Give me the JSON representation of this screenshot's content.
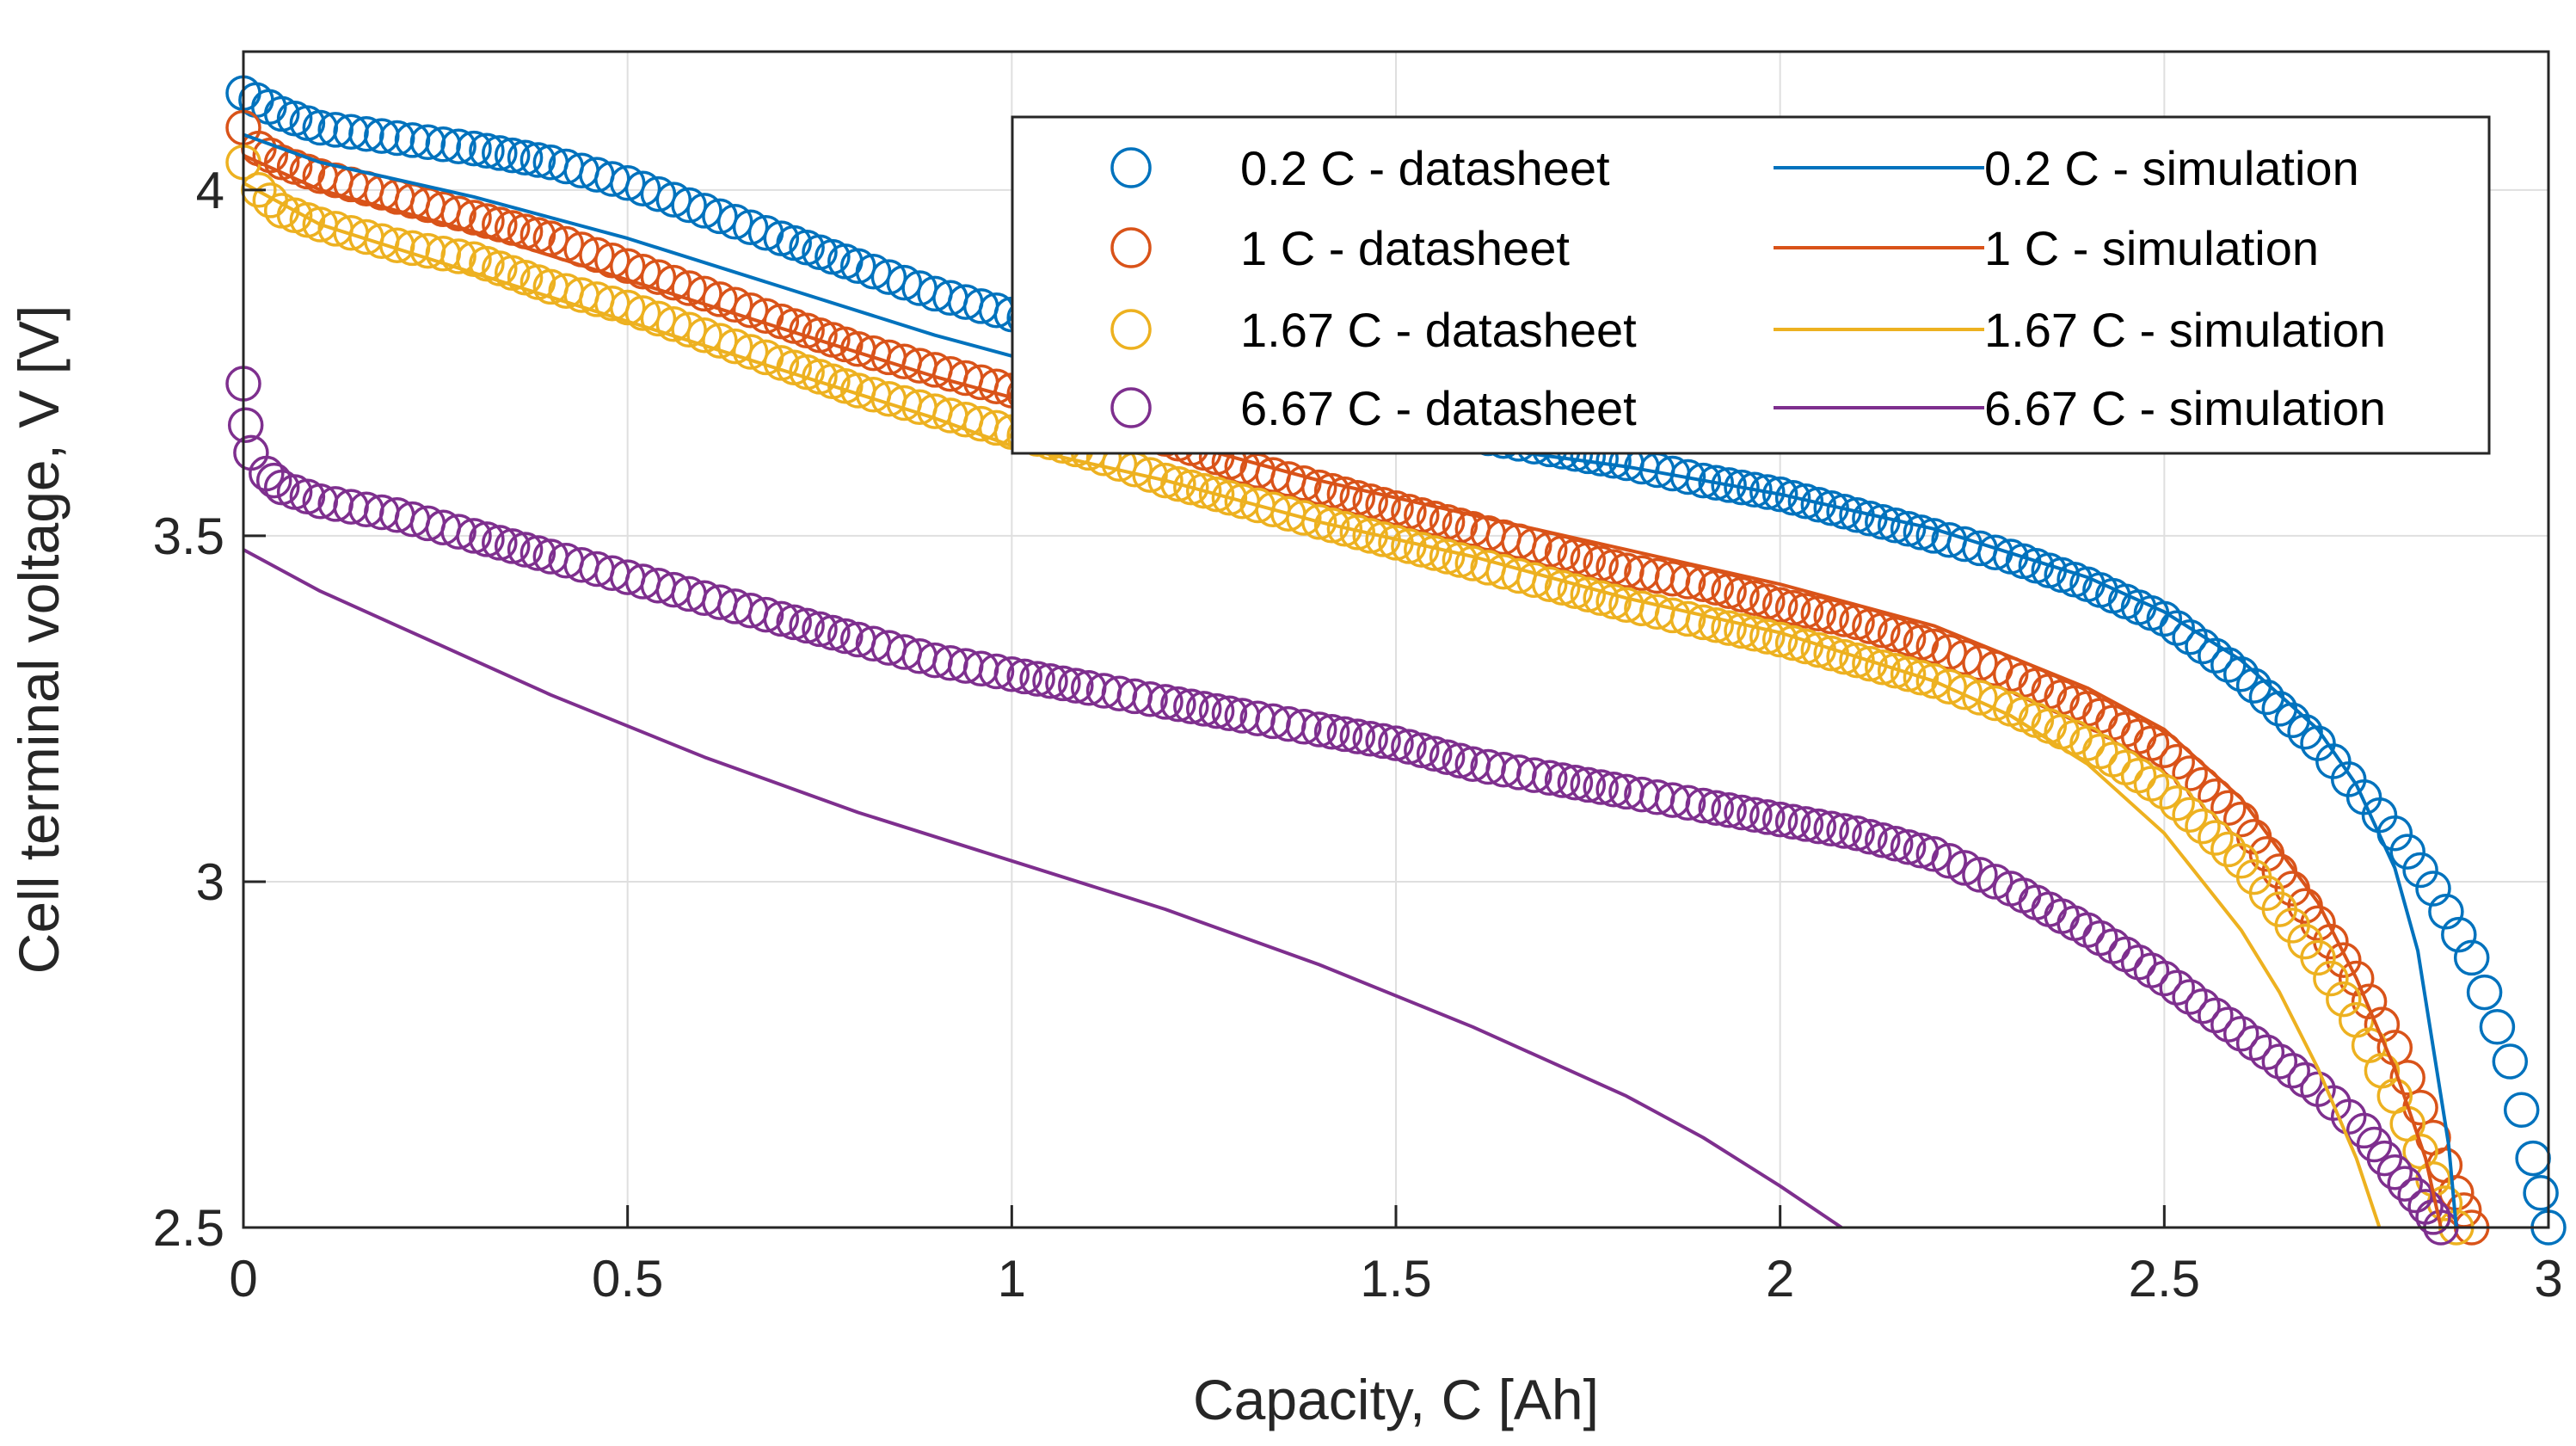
{
  "chart_data": {
    "type": "line",
    "title": "",
    "xlabel": "Capacity, C [Ah]",
    "ylabel": "Cell terminal voltage, V [V]",
    "xlim": [
      0,
      3
    ],
    "ylim": [
      2.5,
      4.2
    ],
    "xticks": [
      0,
      0.5,
      1,
      1.5,
      2,
      2.5,
      3
    ],
    "yticks": [
      2.5,
      3,
      3.5,
      4
    ],
    "xtick_labels": [
      "0",
      "0.5",
      "1",
      "1.5",
      "2",
      "2.5",
      "3"
    ],
    "ytick_labels": [
      "2.5",
      "3",
      "3.5",
      "4"
    ],
    "grid": true,
    "legend_location": "top-right",
    "series": [
      {
        "name": "0.2 C - datasheet",
        "kind": "markers",
        "marker": "circle",
        "color": "#0072BD",
        "points": [
          [
            0,
            4.14
          ],
          [
            0.05,
            4.11
          ],
          [
            0.1,
            4.09
          ],
          [
            0.2,
            4.075
          ],
          [
            0.3,
            4.06
          ],
          [
            0.4,
            4.04
          ],
          [
            0.5,
            4.01
          ],
          [
            0.6,
            3.97
          ],
          [
            0.7,
            3.93
          ],
          [
            0.8,
            3.89
          ],
          [
            0.9,
            3.85
          ],
          [
            1.0,
            3.82
          ],
          [
            1.1,
            3.79
          ],
          [
            1.2,
            3.76
          ],
          [
            1.3,
            3.73
          ],
          [
            1.4,
            3.7
          ],
          [
            1.5,
            3.67
          ],
          [
            1.6,
            3.645
          ],
          [
            1.7,
            3.625
          ],
          [
            1.8,
            3.605
          ],
          [
            1.9,
            3.58
          ],
          [
            2.0,
            3.56
          ],
          [
            2.1,
            3.53
          ],
          [
            2.2,
            3.5
          ],
          [
            2.3,
            3.47
          ],
          [
            2.4,
            3.43
          ],
          [
            2.5,
            3.38
          ],
          [
            2.6,
            3.3
          ],
          [
            2.7,
            3.2
          ],
          [
            2.8,
            3.07
          ],
          [
            2.85,
            2.99
          ],
          [
            2.9,
            2.89
          ],
          [
            2.95,
            2.74
          ],
          [
            2.98,
            2.6
          ],
          [
            3.0,
            2.5
          ]
        ]
      },
      {
        "name": "1 C - datasheet",
        "kind": "markers",
        "marker": "circle",
        "color": "#D95319",
        "points": [
          [
            0,
            4.09
          ],
          [
            0.02,
            4.06
          ],
          [
            0.05,
            4.04
          ],
          [
            0.1,
            4.02
          ],
          [
            0.2,
            3.99
          ],
          [
            0.3,
            3.96
          ],
          [
            0.4,
            3.93
          ],
          [
            0.5,
            3.89
          ],
          [
            0.6,
            3.85
          ],
          [
            0.7,
            3.81
          ],
          [
            0.8,
            3.77
          ],
          [
            0.9,
            3.74
          ],
          [
            1.0,
            3.71
          ],
          [
            1.1,
            3.68
          ],
          [
            1.2,
            3.64
          ],
          [
            1.3,
            3.6
          ],
          [
            1.4,
            3.57
          ],
          [
            1.5,
            3.54
          ],
          [
            1.6,
            3.51
          ],
          [
            1.7,
            3.48
          ],
          [
            1.8,
            3.45
          ],
          [
            1.9,
            3.43
          ],
          [
            2.0,
            3.4
          ],
          [
            2.1,
            3.375
          ],
          [
            2.2,
            3.34
          ],
          [
            2.3,
            3.3
          ],
          [
            2.4,
            3.25
          ],
          [
            2.5,
            3.19
          ],
          [
            2.6,
            3.09
          ],
          [
            2.7,
            2.94
          ],
          [
            2.75,
            2.86
          ],
          [
            2.8,
            2.76
          ],
          [
            2.85,
            2.63
          ],
          [
            2.88,
            2.55
          ],
          [
            2.9,
            2.5
          ]
        ]
      },
      {
        "name": "1.67 C - datasheet",
        "kind": "markers",
        "marker": "circle",
        "color": "#EDB120",
        "points": [
          [
            0,
            4.04
          ],
          [
            0.02,
            4.0
          ],
          [
            0.05,
            3.97
          ],
          [
            0.1,
            3.95
          ],
          [
            0.2,
            3.92
          ],
          [
            0.3,
            3.9
          ],
          [
            0.4,
            3.86
          ],
          [
            0.5,
            3.83
          ],
          [
            0.6,
            3.79
          ],
          [
            0.7,
            3.75
          ],
          [
            0.8,
            3.71
          ],
          [
            0.9,
            3.68
          ],
          [
            1.0,
            3.65
          ],
          [
            1.1,
            3.62
          ],
          [
            1.2,
            3.58
          ],
          [
            1.3,
            3.55
          ],
          [
            1.4,
            3.52
          ],
          [
            1.5,
            3.49
          ],
          [
            1.6,
            3.46
          ],
          [
            1.7,
            3.43
          ],
          [
            1.8,
            3.4
          ],
          [
            1.9,
            3.375
          ],
          [
            2.0,
            3.35
          ],
          [
            2.1,
            3.32
          ],
          [
            2.2,
            3.29
          ],
          [
            2.3,
            3.25
          ],
          [
            2.4,
            3.2
          ],
          [
            2.5,
            3.13
          ],
          [
            2.6,
            3.03
          ],
          [
            2.7,
            2.89
          ],
          [
            2.75,
            2.8
          ],
          [
            2.8,
            2.69
          ],
          [
            2.85,
            2.57
          ],
          [
            2.88,
            2.5
          ]
        ]
      },
      {
        "name": "6.67 C - datasheet",
        "kind": "markers",
        "marker": "circle",
        "color": "#7E2F8E",
        "points": [
          [
            0,
            3.72
          ],
          [
            0.003,
            3.66
          ],
          [
            0.01,
            3.62
          ],
          [
            0.03,
            3.59
          ],
          [
            0.05,
            3.57
          ],
          [
            0.1,
            3.55
          ],
          [
            0.2,
            3.53
          ],
          [
            0.3,
            3.5
          ],
          [
            0.4,
            3.47
          ],
          [
            0.5,
            3.44
          ],
          [
            0.6,
            3.41
          ],
          [
            0.7,
            3.38
          ],
          [
            0.8,
            3.35
          ],
          [
            0.9,
            3.32
          ],
          [
            1.0,
            3.3
          ],
          [
            1.1,
            3.28
          ],
          [
            1.2,
            3.26
          ],
          [
            1.3,
            3.24
          ],
          [
            1.4,
            3.22
          ],
          [
            1.5,
            3.2
          ],
          [
            1.6,
            3.17
          ],
          [
            1.7,
            3.15
          ],
          [
            1.8,
            3.13
          ],
          [
            1.9,
            3.11
          ],
          [
            2.0,
            3.09
          ],
          [
            2.1,
            3.07
          ],
          [
            2.2,
            3.04
          ],
          [
            2.3,
            2.99
          ],
          [
            2.4,
            2.93
          ],
          [
            2.5,
            2.86
          ],
          [
            2.6,
            2.78
          ],
          [
            2.7,
            2.7
          ],
          [
            2.76,
            2.64
          ],
          [
            2.8,
            2.58
          ],
          [
            2.84,
            2.53
          ],
          [
            2.86,
            2.5
          ]
        ]
      },
      {
        "name": "0.2 C - simulation",
        "kind": "line",
        "color": "#0072BD",
        "points": [
          [
            0,
            4.08
          ],
          [
            0.1,
            4.04
          ],
          [
            0.3,
            3.99
          ],
          [
            0.5,
            3.93
          ],
          [
            0.7,
            3.86
          ],
          [
            0.9,
            3.79
          ],
          [
            1.0,
            3.76
          ],
          [
            1.2,
            3.71
          ],
          [
            1.4,
            3.67
          ],
          [
            1.6,
            3.63
          ],
          [
            1.8,
            3.6
          ],
          [
            2.0,
            3.56
          ],
          [
            2.2,
            3.51
          ],
          [
            2.4,
            3.44
          ],
          [
            2.5,
            3.39
          ],
          [
            2.6,
            3.32
          ],
          [
            2.7,
            3.22
          ],
          [
            2.75,
            3.14
          ],
          [
            2.8,
            3.02
          ],
          [
            2.83,
            2.9
          ],
          [
            2.85,
            2.76
          ],
          [
            2.87,
            2.62
          ],
          [
            2.88,
            2.5
          ]
        ]
      },
      {
        "name": "1 C - simulation",
        "kind": "line",
        "color": "#D95319",
        "points": [
          [
            0,
            4.05
          ],
          [
            0.1,
            4.0
          ],
          [
            0.3,
            3.94
          ],
          [
            0.5,
            3.87
          ],
          [
            0.7,
            3.8
          ],
          [
            0.9,
            3.73
          ],
          [
            1.0,
            3.7
          ],
          [
            1.2,
            3.64
          ],
          [
            1.4,
            3.58
          ],
          [
            1.6,
            3.53
          ],
          [
            1.8,
            3.48
          ],
          [
            2.0,
            3.43
          ],
          [
            2.2,
            3.37
          ],
          [
            2.4,
            3.28
          ],
          [
            2.5,
            3.22
          ],
          [
            2.6,
            3.12
          ],
          [
            2.7,
            2.97
          ],
          [
            2.75,
            2.86
          ],
          [
            2.8,
            2.73
          ],
          [
            2.84,
            2.6
          ],
          [
            2.86,
            2.5
          ]
        ]
      },
      {
        "name": "1.67 C - simulation",
        "kind": "line",
        "color": "#EDB120",
        "points": [
          [
            0,
            4.01
          ],
          [
            0.1,
            3.95
          ],
          [
            0.3,
            3.88
          ],
          [
            0.5,
            3.81
          ],
          [
            0.7,
            3.74
          ],
          [
            0.9,
            3.67
          ],
          [
            1.0,
            3.63
          ],
          [
            1.2,
            3.58
          ],
          [
            1.4,
            3.52
          ],
          [
            1.6,
            3.47
          ],
          [
            1.8,
            3.41
          ],
          [
            2.0,
            3.36
          ],
          [
            2.2,
            3.29
          ],
          [
            2.3,
            3.24
          ],
          [
            2.4,
            3.17
          ],
          [
            2.5,
            3.07
          ],
          [
            2.6,
            2.93
          ],
          [
            2.65,
            2.84
          ],
          [
            2.7,
            2.73
          ],
          [
            2.75,
            2.6
          ],
          [
            2.78,
            2.5
          ]
        ]
      },
      {
        "name": "6.67 C - simulation",
        "kind": "line",
        "color": "#7E2F8E",
        "points": [
          [
            0,
            3.48
          ],
          [
            0.1,
            3.42
          ],
          [
            0.2,
            3.37
          ],
          [
            0.4,
            3.27
          ],
          [
            0.6,
            3.18
          ],
          [
            0.8,
            3.1
          ],
          [
            1.0,
            3.03
          ],
          [
            1.2,
            2.96
          ],
          [
            1.4,
            2.88
          ],
          [
            1.6,
            2.79
          ],
          [
            1.8,
            2.69
          ],
          [
            1.9,
            2.63
          ],
          [
            2.0,
            2.56
          ],
          [
            2.08,
            2.5
          ]
        ]
      }
    ]
  }
}
